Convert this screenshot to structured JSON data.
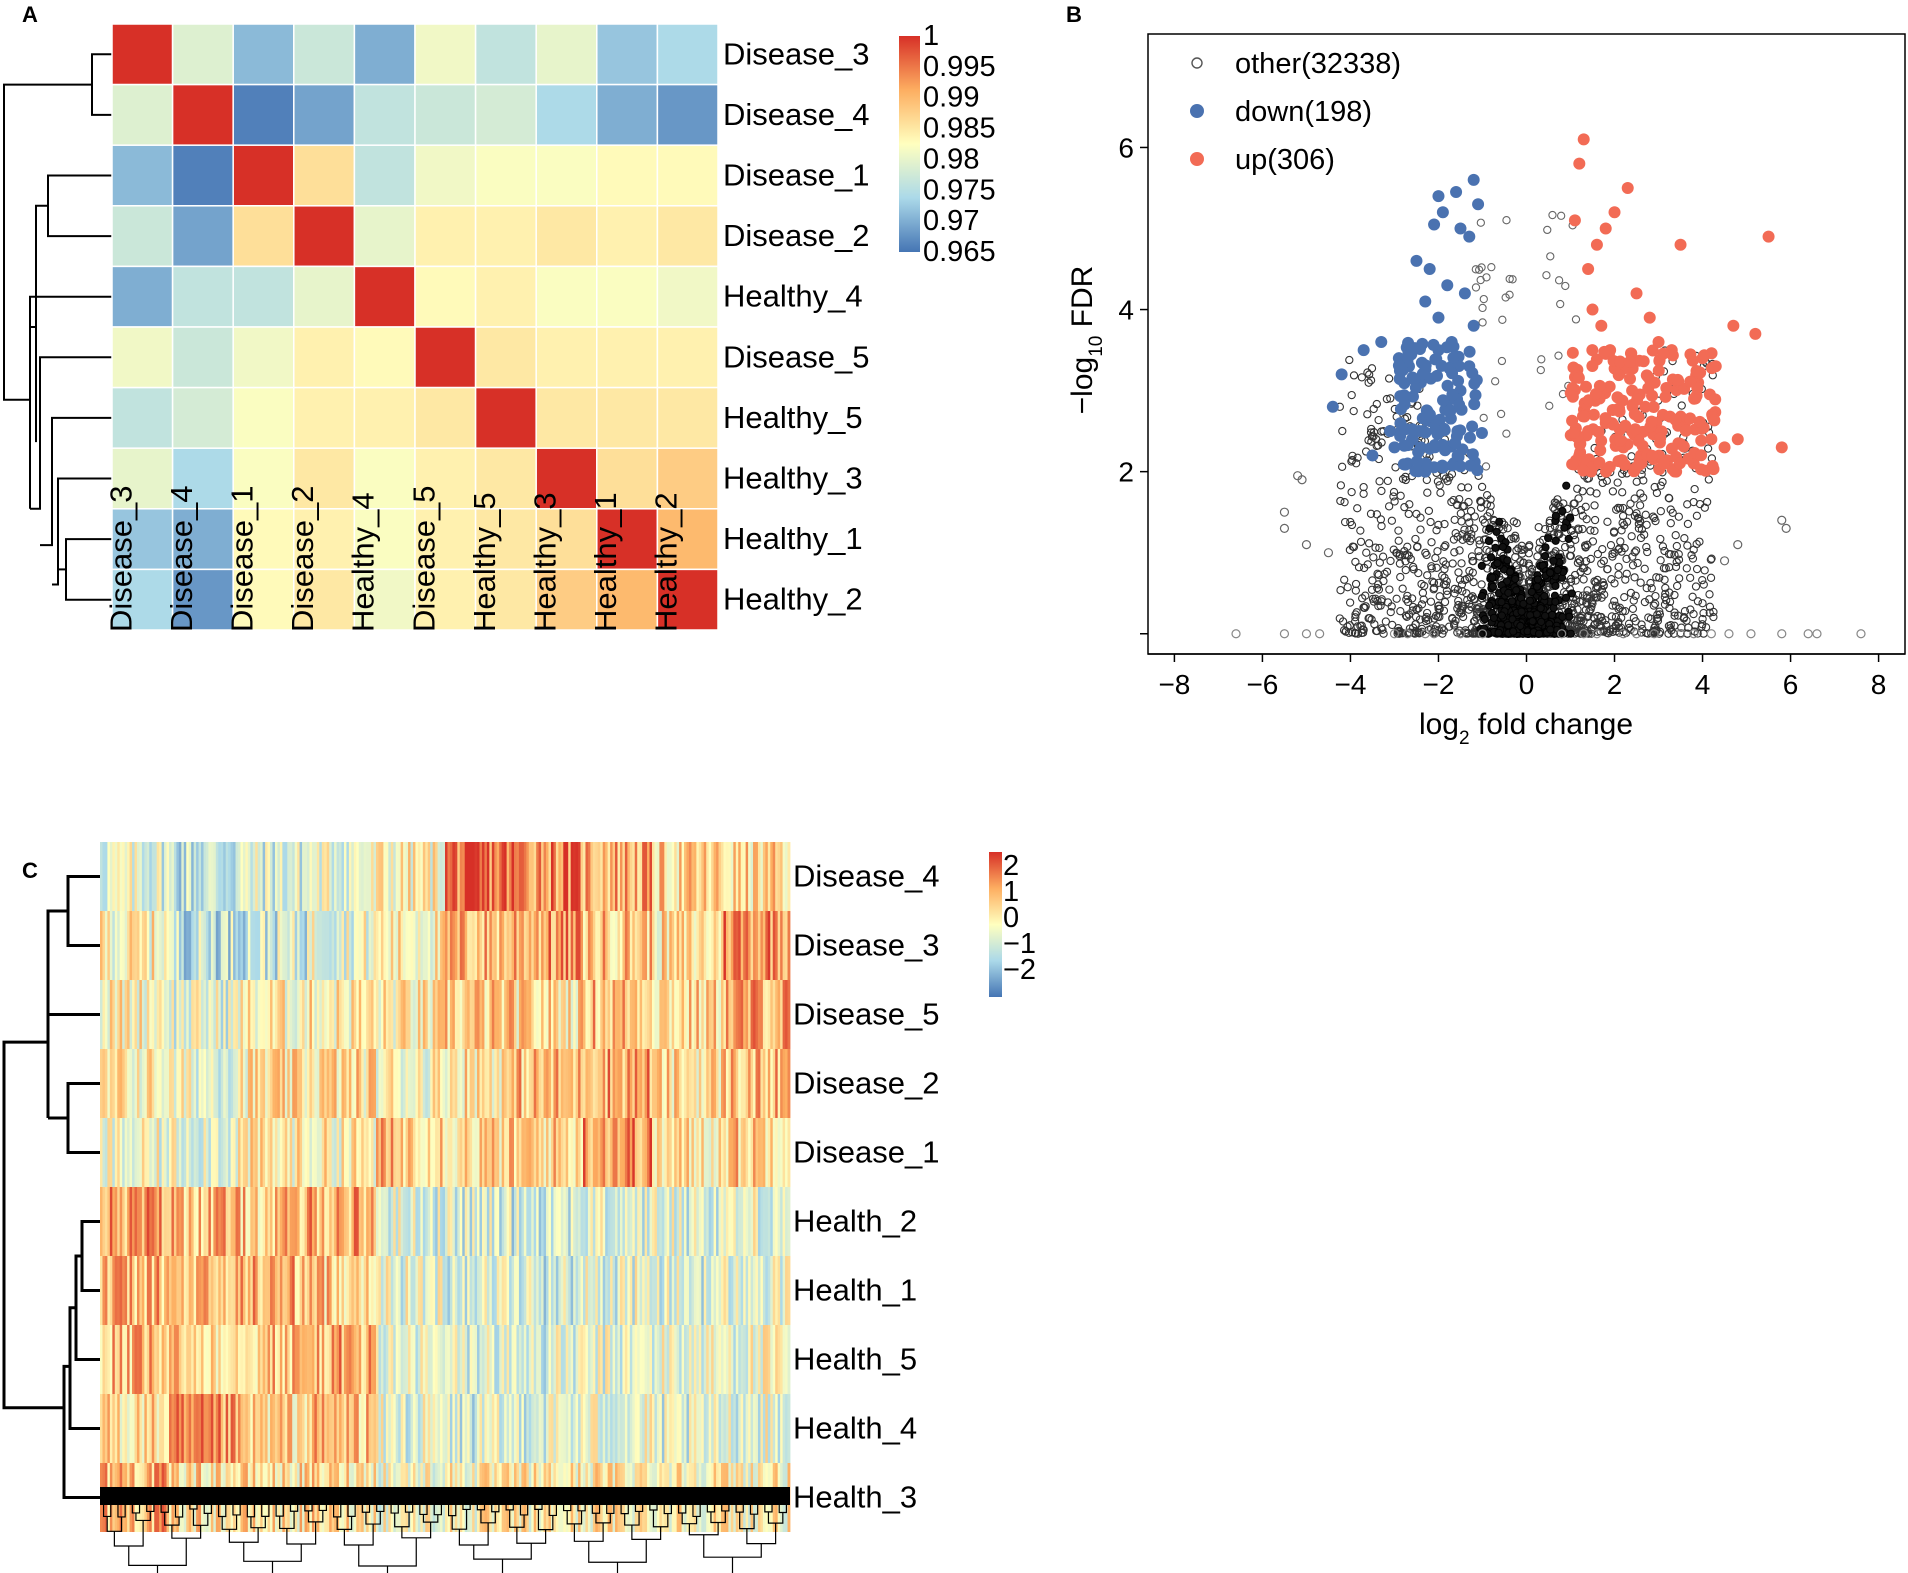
{
  "panel_letters": {
    "a": "A",
    "b": "B",
    "c": "C"
  },
  "chart_data": [
    {
      "panel": "A",
      "type": "heatmap",
      "title": "",
      "rows": [
        "Disease_3",
        "Disease_4",
        "Disease_1",
        "Disease_2",
        "Healthy_4",
        "Disease_5",
        "Healthy_5",
        "Healthy_3",
        "Healthy_1",
        "Healthy_2"
      ],
      "cols": [
        "Disease_3",
        "Disease_4",
        "Disease_1",
        "Disease_2",
        "Healthy_4",
        "Disease_5",
        "Healthy_5",
        "Healthy_3",
        "Healthy_1",
        "Healthy_2"
      ],
      "values": [
        [
          1.0,
          0.979,
          0.971,
          0.977,
          0.97,
          0.981,
          0.976,
          0.98,
          0.972,
          0.974
        ],
        [
          0.979,
          1.0,
          0.966,
          0.969,
          0.976,
          0.977,
          0.978,
          0.974,
          0.97,
          0.968
        ],
        [
          0.971,
          0.966,
          1.0,
          0.986,
          0.976,
          0.981,
          0.982,
          0.982,
          0.983,
          0.983
        ],
        [
          0.977,
          0.969,
          0.986,
          1.0,
          0.98,
          0.984,
          0.984,
          0.985,
          0.984,
          0.985
        ],
        [
          0.97,
          0.976,
          0.976,
          0.98,
          1.0,
          0.983,
          0.984,
          0.982,
          0.982,
          0.981
        ],
        [
          0.981,
          0.977,
          0.981,
          0.984,
          0.983,
          1.0,
          0.985,
          0.984,
          0.984,
          0.984
        ],
        [
          0.976,
          0.978,
          0.982,
          0.984,
          0.984,
          0.985,
          1.0,
          0.985,
          0.985,
          0.985
        ],
        [
          0.98,
          0.974,
          0.982,
          0.985,
          0.982,
          0.984,
          0.985,
          1.0,
          0.986,
          0.988
        ],
        [
          0.972,
          0.97,
          0.983,
          0.984,
          0.982,
          0.984,
          0.985,
          0.986,
          1.0,
          0.99
        ],
        [
          0.974,
          0.968,
          0.983,
          0.985,
          0.981,
          0.984,
          0.985,
          0.988,
          0.99,
          1.0
        ]
      ],
      "color_range": [
        0.965,
        1
      ],
      "legend_ticks": [
        "1",
        "0.995",
        "0.99",
        "0.985",
        "0.98",
        "0.975",
        "0.97",
        "0.965"
      ],
      "dendrogram": "rows"
    },
    {
      "panel": "B",
      "type": "scatter",
      "title": "",
      "xlabel": "log2 fold change",
      "ylabel": "-log10 FDR",
      "xlim": [
        -8.6,
        8.6
      ],
      "ylim": [
        -0.25,
        7.4
      ],
      "x_ticks": [
        -8,
        -6,
        -4,
        -2,
        0,
        2,
        4,
        6,
        8
      ],
      "x_tick_labels": [
        "−8",
        "−6",
        "−4",
        "−2",
        "0",
        "2",
        "4",
        "6",
        "8"
      ],
      "y_ticks": [
        2,
        4,
        6
      ],
      "y_tick_labels": [
        "2",
        "4",
        "6"
      ],
      "legend_position": "top-left",
      "series": [
        {
          "name": "other",
          "label": "other(32338)",
          "count": 32338,
          "color": "#808080",
          "marker": "open-circle"
        },
        {
          "name": "down",
          "label": "down(198)",
          "count": 198,
          "color": "#4a72b0",
          "marker": "filled-circle",
          "x": [
            -2.0,
            -1.6,
            -1.2,
            -1.9,
            -1.5,
            -1.1,
            -2.1,
            -1.3,
            -2.5,
            -2.2,
            -1.8,
            -2.3,
            -1.4,
            -2.0,
            -1.7,
            -3.3,
            -3.7,
            -2.9,
            -4.2,
            -4.4,
            -3.1,
            -2.6,
            -2.4,
            -3.5,
            -2.7,
            -3.0,
            -2.3,
            -2.1,
            -1.8,
            -1.5,
            -1.3,
            -1.6,
            -2.0,
            -2.4,
            -1.2,
            -1.9
          ],
          "y": [
            5.4,
            5.45,
            5.6,
            5.2,
            5.0,
            5.3,
            5.05,
            4.9,
            4.6,
            4.5,
            4.3,
            4.1,
            4.2,
            3.9,
            3.6,
            3.6,
            3.5,
            3.4,
            3.2,
            2.8,
            2.5,
            2.4,
            2.3,
            2.2,
            2.1,
            2.3,
            2.0,
            2.6,
            2.8,
            3.0,
            3.3,
            2.9,
            3.5,
            3.1,
            3.8,
            2.05
          ]
        },
        {
          "name": "up",
          "label": "up(306)",
          "count": 306,
          "color": "#f26b55",
          "marker": "filled-circle",
          "x": [
            1.3,
            1.2,
            2.0,
            2.3,
            1.8,
            1.6,
            1.1,
            1.4,
            2.5,
            2.8,
            3.5,
            5.5,
            4.7,
            5.2,
            3.0,
            3.3,
            4.0,
            4.3,
            5.8,
            1.5,
            1.7,
            1.9,
            2.1,
            2.4,
            2.7,
            3.1,
            3.6,
            3.9,
            4.2,
            4.5,
            1.2,
            1.4,
            1.6,
            1.8,
            2.2,
            2.6,
            3.8,
            4.8,
            3.4,
            2.9
          ],
          "y": [
            6.1,
            5.8,
            5.2,
            5.5,
            5.0,
            4.8,
            5.1,
            4.5,
            4.2,
            3.9,
            4.8,
            4.9,
            3.8,
            3.7,
            3.6,
            3.5,
            3.4,
            3.3,
            2.3,
            4.0,
            3.8,
            3.5,
            3.2,
            3.0,
            2.8,
            2.7,
            2.6,
            3.1,
            2.4,
            2.3,
            2.2,
            2.5,
            2.9,
            2.6,
            2.3,
            2.2,
            2.1,
            2.4,
            2.0,
            2.5
          ]
        }
      ]
    },
    {
      "panel": "C",
      "type": "heatmap",
      "title": "",
      "rows": [
        "Disease_4",
        "Disease_3",
        "Disease_5",
        "Disease_2",
        "Disease_1",
        "Health_2",
        "Health_1",
        "Health_5",
        "Health_4",
        "Health_3"
      ],
      "n_columns": 280,
      "color_range": [
        -2.5,
        2.5
      ],
      "legend_ticks": [
        "2",
        "1",
        "0",
        "−1",
        "−2"
      ],
      "legend_values": [
        2,
        1,
        0,
        -1,
        -2
      ],
      "row_blocks": [
        [
          -0.6,
          -1.2,
          -0.8,
          -0.4,
          0.1,
          1.8,
          1.6,
          1.2,
          0.6,
          0.5
        ],
        [
          0.2,
          -1.2,
          -1.0,
          -0.3,
          0.2,
          1.0,
          1.3,
          0.9,
          0.4,
          1.6
        ],
        [
          0.3,
          -0.5,
          0.2,
          0.4,
          0.2,
          0.7,
          0.5,
          1.0,
          0.6,
          1.2
        ],
        [
          0.3,
          -0.3,
          0.5,
          0.7,
          0.1,
          0.5,
          0.9,
          1.3,
          0.5,
          0.9
        ],
        [
          -0.4,
          -0.3,
          0.3,
          0.3,
          0.9,
          0.6,
          0.7,
          1.5,
          0.4,
          0.8
        ],
        [
          1.3,
          1.0,
          0.8,
          1.2,
          -0.4,
          -0.6,
          -0.5,
          -0.5,
          -0.4,
          -0.3
        ],
        [
          1.0,
          0.8,
          1.1,
          0.8,
          -0.3,
          -0.4,
          -0.6,
          -0.4,
          -0.5,
          -0.4
        ],
        [
          0.9,
          0.7,
          0.9,
          1.1,
          -0.4,
          -0.5,
          -0.5,
          -0.4,
          -0.3,
          -0.2
        ],
        [
          0.5,
          1.2,
          0.6,
          0.9,
          -0.4,
          -0.6,
          -0.4,
          -0.3,
          -0.6,
          -0.3
        ],
        [
          1.1,
          0.5,
          0.4,
          0.5,
          0.0,
          0.1,
          0.2,
          0.3,
          0.3,
          0.2
        ]
      ],
      "dendrogram": "rows-and-columns"
    }
  ]
}
